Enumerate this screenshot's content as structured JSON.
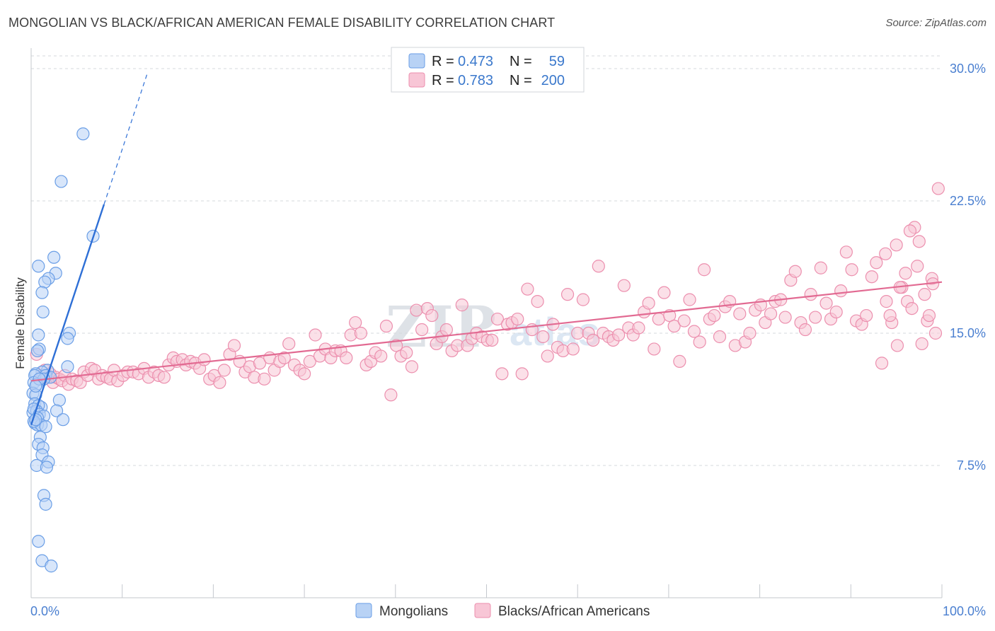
{
  "title": "MONGOLIAN VS BLACK/AFRICAN AMERICAN FEMALE DISABILITY CORRELATION CHART",
  "source": "Source: ZipAtlas.com",
  "watermark": {
    "part1": "ZIP",
    "part2": "atlas"
  },
  "colors": {
    "blue_fill": "#b8d2f5",
    "blue_stroke": "#6a9ee6",
    "blue_line": "#2e6fd6",
    "pink_fill": "#f8c6d6",
    "pink_stroke": "#ec8fae",
    "pink_line": "#e26a92",
    "grid": "#d6d9de",
    "tick_text": "#4a7fd0"
  },
  "stats_legend": [
    {
      "r_label": "R =",
      "r_value": "0.473",
      "n_label": "N =",
      "n_value": "59"
    },
    {
      "r_label": "R =",
      "r_value": "0.783",
      "n_label": "N =",
      "n_value": "200"
    }
  ],
  "chart_data": {
    "type": "scatter",
    "title": "MONGOLIAN VS BLACK/AFRICAN AMERICAN FEMALE DISABILITY CORRELATION CHART",
    "xlabel": "",
    "ylabel": "Female Disability",
    "xlim": [
      0,
      100
    ],
    "ylim": [
      0,
      31
    ],
    "x_tick_labels": {
      "left": "0.0%",
      "right": "100.0%"
    },
    "y_ticks": [
      {
        "value": 7.5,
        "label": "7.5%"
      },
      {
        "value": 15.0,
        "label": "15.0%"
      },
      {
        "value": 22.5,
        "label": "22.5%"
      },
      {
        "value": 30.0,
        "label": "30.0%"
      }
    ],
    "grid": true,
    "legend": [
      "Mongolians",
      "Blacks/African Americans"
    ],
    "series": [
      {
        "name": "Mongolians",
        "color": "blue",
        "r": 0.473,
        "n": 59,
        "trend": {
          "x0": 0.0,
          "y0": 9.8,
          "x1": 8.0,
          "y1": 22.3,
          "dash_to_x": 12.8,
          "dash_to_y": 29.8
        },
        "points": [
          [
            5.7,
            26.3
          ],
          [
            3.3,
            23.6
          ],
          [
            6.8,
            20.5
          ],
          [
            2.5,
            19.3
          ],
          [
            0.8,
            18.8
          ],
          [
            2.7,
            18.4
          ],
          [
            1.9,
            18.1
          ],
          [
            1.5,
            17.9
          ],
          [
            1.2,
            17.3
          ],
          [
            1.3,
            16.2
          ],
          [
            4.2,
            15.0
          ],
          [
            0.8,
            14.9
          ],
          [
            4.0,
            14.7
          ],
          [
            0.9,
            14.1
          ],
          [
            0.7,
            14.0
          ],
          [
            4.0,
            13.1
          ],
          [
            1.8,
            12.9
          ],
          [
            1.2,
            12.8
          ],
          [
            0.5,
            12.7
          ],
          [
            1.6,
            12.6
          ],
          [
            0.4,
            12.6
          ],
          [
            2.1,
            12.5
          ],
          [
            1.4,
            12.4
          ],
          [
            0.3,
            12.2
          ],
          [
            0.6,
            12.1
          ],
          [
            0.9,
            12.4
          ],
          [
            0.2,
            11.6
          ],
          [
            0.5,
            11.5
          ],
          [
            3.1,
            11.2
          ],
          [
            0.4,
            11.0
          ],
          [
            1.1,
            10.8
          ],
          [
            0.8,
            10.9
          ],
          [
            2.8,
            10.6
          ],
          [
            0.2,
            10.5
          ],
          [
            0.6,
            10.6
          ],
          [
            0.3,
            10.7
          ],
          [
            0.9,
            10.4
          ],
          [
            1.4,
            10.3
          ],
          [
            0.7,
            10.2
          ],
          [
            3.5,
            10.1
          ],
          [
            0.4,
            9.9
          ],
          [
            0.7,
            9.8
          ],
          [
            1.1,
            9.8
          ],
          [
            0.3,
            10.0
          ],
          [
            0.5,
            10.1
          ],
          [
            1.6,
            9.7
          ],
          [
            1.0,
            9.1
          ],
          [
            0.8,
            8.7
          ],
          [
            1.3,
            8.5
          ],
          [
            1.2,
            8.1
          ],
          [
            1.9,
            7.7
          ],
          [
            0.6,
            7.5
          ],
          [
            1.7,
            7.4
          ],
          [
            1.4,
            5.8
          ],
          [
            1.6,
            5.3
          ],
          [
            0.8,
            3.2
          ],
          [
            1.2,
            2.1
          ],
          [
            2.2,
            1.8
          ],
          [
            0.5,
            12.0
          ]
        ]
      },
      {
        "name": "Blacks/African Americans",
        "color": "pink",
        "r": 0.783,
        "n": 200,
        "trend": {
          "x0": 0.0,
          "y0": 12.3,
          "x1": 100.0,
          "y1": 17.9
        },
        "points": [
          [
            0.6,
            13.8
          ],
          [
            0.9,
            12.4
          ],
          [
            1.2,
            12.6
          ],
          [
            1.5,
            12.9
          ],
          [
            1.8,
            12.5
          ],
          [
            2.1,
            12.7
          ],
          [
            2.4,
            12.2
          ],
          [
            2.7,
            12.5
          ],
          [
            3.1,
            12.4
          ],
          [
            3.4,
            12.3
          ],
          [
            3.7,
            12.6
          ],
          [
            4.1,
            12.1
          ],
          [
            4.5,
            12.4
          ],
          [
            5.0,
            12.3
          ],
          [
            5.4,
            12.2
          ],
          [
            5.8,
            12.8
          ],
          [
            6.2,
            12.6
          ],
          [
            6.6,
            13.0
          ],
          [
            7.0,
            12.9
          ],
          [
            7.4,
            12.4
          ],
          [
            7.8,
            12.6
          ],
          [
            8.3,
            12.5
          ],
          [
            8.7,
            12.4
          ],
          [
            9.1,
            12.9
          ],
          [
            9.5,
            12.3
          ],
          [
            10.1,
            12.6
          ],
          [
            10.6,
            12.8
          ],
          [
            11.2,
            12.8
          ],
          [
            11.8,
            12.7
          ],
          [
            12.4,
            13.0
          ],
          [
            12.9,
            12.5
          ],
          [
            13.5,
            12.8
          ],
          [
            14.0,
            12.6
          ],
          [
            14.6,
            12.5
          ],
          [
            15.1,
            13.2
          ],
          [
            15.6,
            13.6
          ],
          [
            16.0,
            13.4
          ],
          [
            16.6,
            13.5
          ],
          [
            17.0,
            13.2
          ],
          [
            17.5,
            13.4
          ],
          [
            18.0,
            13.3
          ],
          [
            18.5,
            13.0
          ],
          [
            19.0,
            13.5
          ],
          [
            19.6,
            12.4
          ],
          [
            20.1,
            12.6
          ],
          [
            20.7,
            12.2
          ],
          [
            21.2,
            12.9
          ],
          [
            21.8,
            13.8
          ],
          [
            22.3,
            14.3
          ],
          [
            22.9,
            13.4
          ],
          [
            23.5,
            12.8
          ],
          [
            24.0,
            13.1
          ],
          [
            24.5,
            12.5
          ],
          [
            25.1,
            13.3
          ],
          [
            25.6,
            12.4
          ],
          [
            26.2,
            13.6
          ],
          [
            26.7,
            12.9
          ],
          [
            27.3,
            13.4
          ],
          [
            27.8,
            13.6
          ],
          [
            28.3,
            14.4
          ],
          [
            28.9,
            13.2
          ],
          [
            29.5,
            12.9
          ],
          [
            30.0,
            12.7
          ],
          [
            30.6,
            13.4
          ],
          [
            31.2,
            14.9
          ],
          [
            31.7,
            13.7
          ],
          [
            32.3,
            14.1
          ],
          [
            32.9,
            13.6
          ],
          [
            33.4,
            14.0
          ],
          [
            34.0,
            14.0
          ],
          [
            34.6,
            13.6
          ],
          [
            35.1,
            14.9
          ],
          [
            35.6,
            15.6
          ],
          [
            36.2,
            15.0
          ],
          [
            36.8,
            13.2
          ],
          [
            37.3,
            13.4
          ],
          [
            37.8,
            13.9
          ],
          [
            38.4,
            13.7
          ],
          [
            39.0,
            15.4
          ],
          [
            39.5,
            11.5
          ],
          [
            40.1,
            14.3
          ],
          [
            40.6,
            13.7
          ],
          [
            41.2,
            13.9
          ],
          [
            41.8,
            13.1
          ],
          [
            42.3,
            16.3
          ],
          [
            42.9,
            15.2
          ],
          [
            43.5,
            16.4
          ],
          [
            44.0,
            16.0
          ],
          [
            44.5,
            14.4
          ],
          [
            45.1,
            14.8
          ],
          [
            45.6,
            15.2
          ],
          [
            46.2,
            14.0
          ],
          [
            46.8,
            14.3
          ],
          [
            47.3,
            16.6
          ],
          [
            47.9,
            14.3
          ],
          [
            48.4,
            14.7
          ],
          [
            48.9,
            15.0
          ],
          [
            49.5,
            14.8
          ],
          [
            50.1,
            14.6
          ],
          [
            50.6,
            14.6
          ],
          [
            51.2,
            15.8
          ],
          [
            51.7,
            12.7
          ],
          [
            52.3,
            15.5
          ],
          [
            52.8,
            15.6
          ],
          [
            53.4,
            15.8
          ],
          [
            53.9,
            12.7
          ],
          [
            54.5,
            17.5
          ],
          [
            55.0,
            15.2
          ],
          [
            55.6,
            16.8
          ],
          [
            56.2,
            14.8
          ],
          [
            56.7,
            13.7
          ],
          [
            57.3,
            15.5
          ],
          [
            57.8,
            14.2
          ],
          [
            58.4,
            14.0
          ],
          [
            58.9,
            17.2
          ],
          [
            59.5,
            14.1
          ],
          [
            60.0,
            15.0
          ],
          [
            60.6,
            16.9
          ],
          [
            61.2,
            15.0
          ],
          [
            61.7,
            14.6
          ],
          [
            62.3,
            18.8
          ],
          [
            62.8,
            15.0
          ],
          [
            63.4,
            14.8
          ],
          [
            63.9,
            14.6
          ],
          [
            64.5,
            14.9
          ],
          [
            65.1,
            17.7
          ],
          [
            65.6,
            15.3
          ],
          [
            66.1,
            14.9
          ],
          [
            66.7,
            15.3
          ],
          [
            67.3,
            16.2
          ],
          [
            67.8,
            16.7
          ],
          [
            68.4,
            14.1
          ],
          [
            68.9,
            15.8
          ],
          [
            69.5,
            17.3
          ],
          [
            70.1,
            16.0
          ],
          [
            70.6,
            15.4
          ],
          [
            71.2,
            13.4
          ],
          [
            71.7,
            15.7
          ],
          [
            72.3,
            16.9
          ],
          [
            72.8,
            15.1
          ],
          [
            73.4,
            14.5
          ],
          [
            73.9,
            18.6
          ],
          [
            74.5,
            15.8
          ],
          [
            75.0,
            16.0
          ],
          [
            75.6,
            14.8
          ],
          [
            76.2,
            16.5
          ],
          [
            76.7,
            16.8
          ],
          [
            77.3,
            14.3
          ],
          [
            77.8,
            16.1
          ],
          [
            78.4,
            14.5
          ],
          [
            78.9,
            15.0
          ],
          [
            79.5,
            16.3
          ],
          [
            80.1,
            16.6
          ],
          [
            80.6,
            15.6
          ],
          [
            81.2,
            16.1
          ],
          [
            81.7,
            16.8
          ],
          [
            82.3,
            16.9
          ],
          [
            82.8,
            15.9
          ],
          [
            83.4,
            18.0
          ],
          [
            83.9,
            18.5
          ],
          [
            84.5,
            15.6
          ],
          [
            85.0,
            15.2
          ],
          [
            85.6,
            17.2
          ],
          [
            86.1,
            15.9
          ],
          [
            86.7,
            18.7
          ],
          [
            87.3,
            16.7
          ],
          [
            87.8,
            15.8
          ],
          [
            88.4,
            16.2
          ],
          [
            88.9,
            17.4
          ],
          [
            89.5,
            19.6
          ],
          [
            90.1,
            18.6
          ],
          [
            90.6,
            15.7
          ],
          [
            91.2,
            15.5
          ],
          [
            91.7,
            16.0
          ],
          [
            92.3,
            18.2
          ],
          [
            92.8,
            19.0
          ],
          [
            93.4,
            13.3
          ],
          [
            93.9,
            16.8
          ],
          [
            94.5,
            15.6
          ],
          [
            95.1,
            14.3
          ],
          [
            95.6,
            17.6
          ],
          [
            96.2,
            16.8
          ],
          [
            96.7,
            16.4
          ],
          [
            97.3,
            18.8
          ],
          [
            97.8,
            14.4
          ],
          [
            98.4,
            15.7
          ],
          [
            98.9,
            18.1
          ],
          [
            99.3,
            15.0
          ],
          [
            99.6,
            23.2
          ],
          [
            99.0,
            17.8
          ],
          [
            98.6,
            16.0
          ],
          [
            98.1,
            17.2
          ],
          [
            97.5,
            20.2
          ],
          [
            97.0,
            21.0
          ],
          [
            96.5,
            20.8
          ],
          [
            96.0,
            18.4
          ],
          [
            95.4,
            17.6
          ],
          [
            95.0,
            20.0
          ],
          [
            94.3,
            16.0
          ],
          [
            93.8,
            19.5
          ]
        ]
      }
    ]
  }
}
